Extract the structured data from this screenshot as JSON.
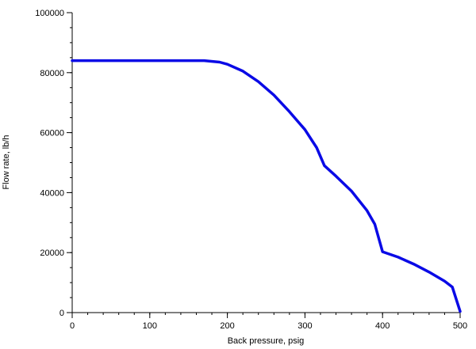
{
  "chart_data": {
    "type": "line",
    "title": "",
    "xlabel": "Back pressure, psig",
    "ylabel": "Flow rate, lb/h",
    "xlim": [
      0,
      500
    ],
    "ylim": [
      0,
      100000
    ],
    "x_major_ticks": [
      "0",
      "100",
      "200",
      "300",
      "400",
      "500"
    ],
    "y_major_ticks": [
      "0",
      "20000",
      "40000",
      "60000",
      "80000",
      "100000"
    ],
    "x_minor_step": 20,
    "y_minor_step": 5000,
    "grid": false,
    "legend": "none",
    "series": [
      {
        "color": "#0a0ae6",
        "x": [
          0,
          50,
          100,
          150,
          170,
          190,
          200,
          220,
          240,
          260,
          280,
          300,
          310,
          315,
          325,
          340,
          360,
          380,
          390,
          400,
          420,
          440,
          460,
          480,
          490,
          500
        ],
        "y": [
          84000,
          84000,
          84000,
          84000,
          84000,
          83500,
          82800,
          80500,
          77000,
          72500,
          67000,
          61000,
          57000,
          55000,
          49000,
          45500,
          40500,
          34000,
          29500,
          20300,
          18500,
          16200,
          13500,
          10500,
          8500,
          400
        ]
      }
    ]
  }
}
